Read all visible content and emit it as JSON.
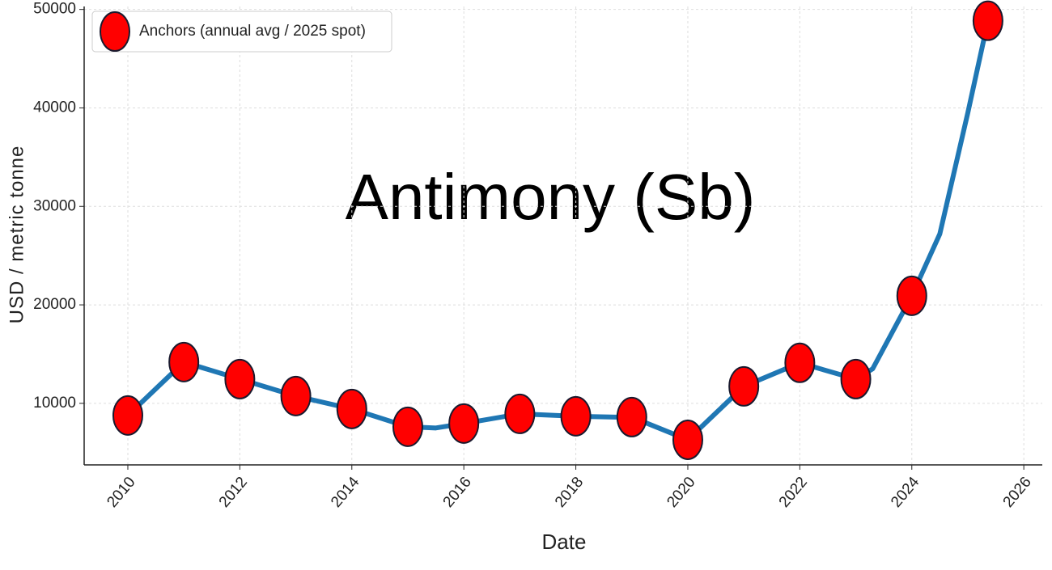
{
  "chart_data": {
    "type": "line",
    "title": "Antimony (Sb)",
    "x_label": "Date",
    "y_label": "USD / metric tonne",
    "xlim": [
      2009.22,
      2026.33
    ],
    "ylim": [
      3750,
      50300
    ],
    "xticks": [
      2010,
      2012,
      2014,
      2016,
      2018,
      2020,
      2022,
      2024,
      2026
    ],
    "yticks": [
      10000,
      20000,
      30000,
      40000,
      50000
    ],
    "grid": true,
    "legend": "upper left",
    "series": [
      {
        "style": "line",
        "color": "#1f77b4",
        "x": [
          2010,
          2011,
          2012,
          2013,
          2014,
          2015,
          2015.5,
          2016,
          2017,
          2018,
          2018.7,
          2019,
          2020,
          2021,
          2022,
          2023,
          2023.3,
          2024,
          2024.5,
          2025,
          2025.36
        ],
        "values": [
          8770,
          14190,
          12460,
          10740,
          9430,
          7620,
          7500,
          7950,
          8930,
          8690,
          8600,
          8600,
          6300,
          11720,
          14110,
          12460,
          13500,
          20920,
          27200,
          39500,
          48850
        ]
      },
      {
        "style": "markers",
        "name": "Anchors (annual avg / 2025 spot)",
        "color": "#ff0000",
        "x": [
          2010,
          2011,
          2012,
          2013,
          2014,
          2015,
          2016,
          2017,
          2018,
          2019,
          2020,
          2021,
          2022,
          2023,
          2024,
          2025.36
        ],
        "values": [
          8770,
          14190,
          12460,
          10740,
          9430,
          7620,
          7950,
          8930,
          8690,
          8600,
          6300,
          11720,
          14110,
          12460,
          20920,
          48850
        ]
      }
    ]
  }
}
